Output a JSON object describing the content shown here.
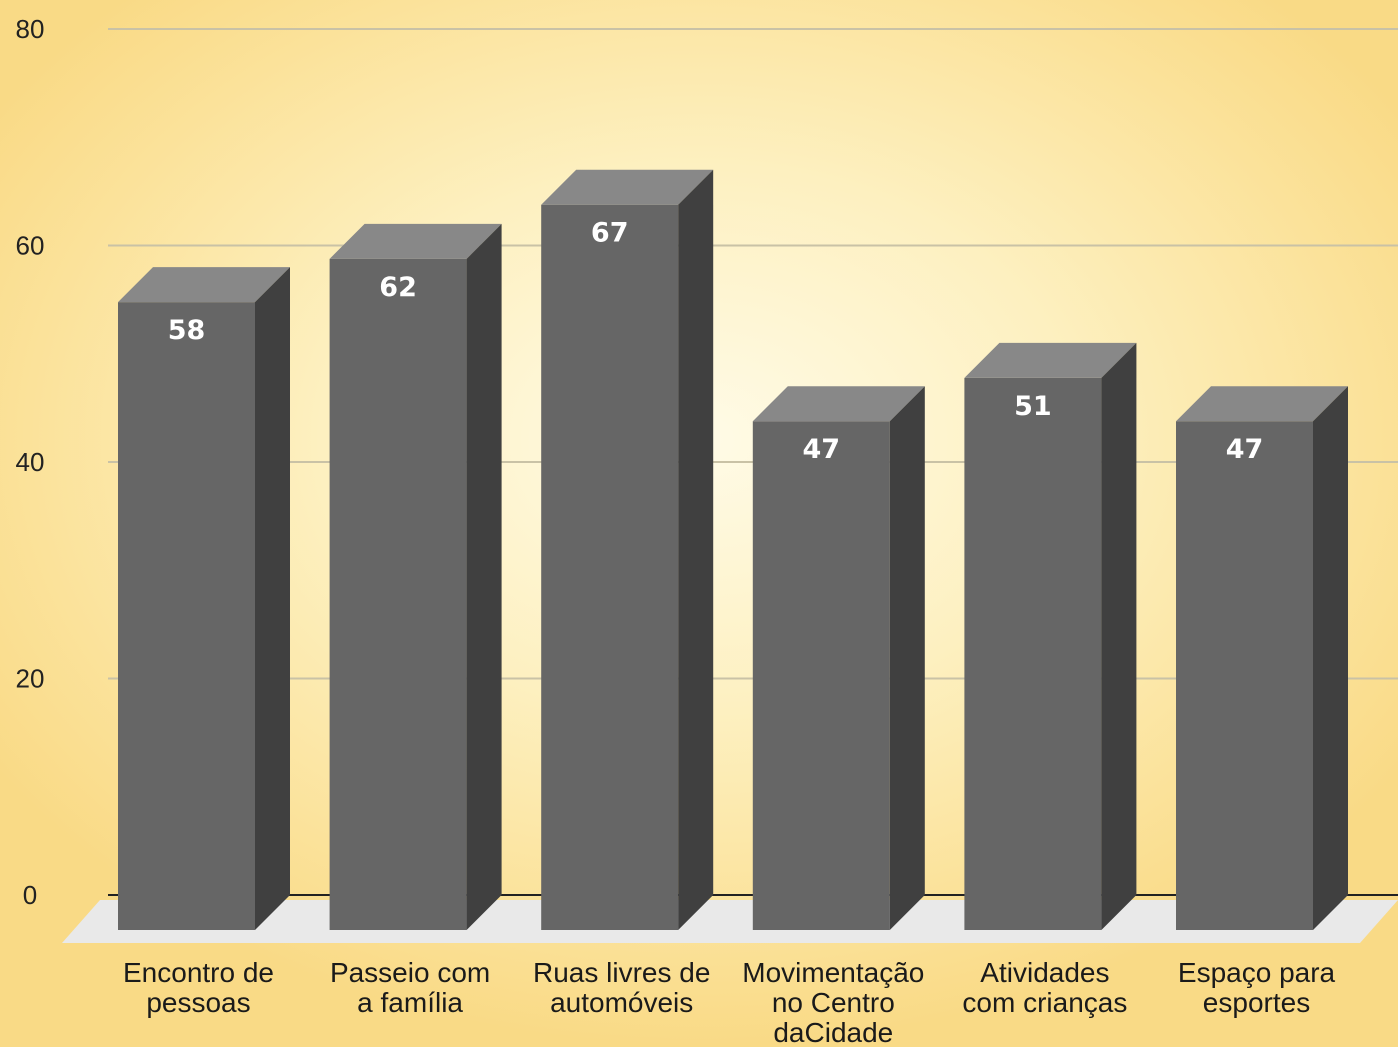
{
  "chart_data": {
    "type": "bar",
    "style": "3d-column",
    "categories": [
      [
        "Encontro de",
        "pessoas"
      ],
      [
        "Passeio com",
        "a família"
      ],
      [
        "Ruas livres de",
        "automóveis"
      ],
      [
        "Movimentação",
        "no Centro",
        "daCidade"
      ],
      [
        "Atividades",
        "com crianças"
      ],
      [
        "Espaço para",
        "esportes"
      ]
    ],
    "values": [
      58,
      62,
      67,
      47,
      51,
      47
    ],
    "data_labels": [
      "58",
      "62",
      "67",
      "47",
      "51",
      "47"
    ],
    "title": "",
    "xlabel": "",
    "ylabel": "",
    "ylim": [
      0,
      80
    ],
    "yticks": [
      "0",
      "20",
      "40",
      "60",
      "80"
    ],
    "grid": true,
    "legend": "none",
    "colors": {
      "bar_front": "#666666",
      "bar_top": "#888888",
      "bar_side": "#404040",
      "floor": "#e9e9e9",
      "gridline": "#c9c2a6",
      "axis_line": "#222222"
    }
  }
}
